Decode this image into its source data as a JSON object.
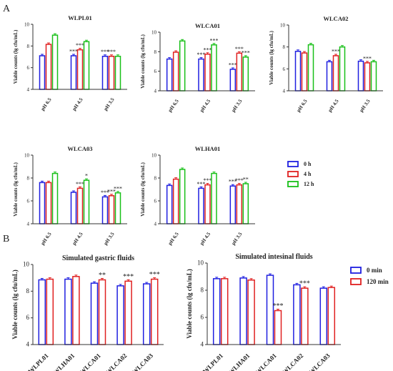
{
  "colors": {
    "blue": "#1f1fe0",
    "red": "#e02020",
    "green": "#18c018",
    "axis": "#333333"
  },
  "panel_a": {
    "letter": "A",
    "ylabel": "Viable counts (lg cfu/mL)",
    "legend": [
      {
        "label": "0 h",
        "color": "#1f1fe0"
      },
      {
        "label": "4 h",
        "color": "#e02020"
      },
      {
        "label": "12 h",
        "color": "#18c018"
      }
    ]
  },
  "panel_b": {
    "letter": "B",
    "ylabel": "Viable counts (lg cfu/mL)",
    "legend": [
      {
        "label": "0 min",
        "color": "#1f1fe0"
      },
      {
        "label": "120 min",
        "color": "#e02020"
      }
    ]
  },
  "chart_data": [
    {
      "type": "bar",
      "title": "WLPL01",
      "categories": [
        "pH 6.5",
        "pH 4.5",
        "pH 3.5"
      ],
      "ylim": [
        4,
        10
      ],
      "yticks": [
        4,
        6,
        8,
        10
      ],
      "series": [
        {
          "name": "0 h",
          "values": [
            7.1,
            7.1,
            7.05
          ]
        },
        {
          "name": "4 h",
          "values": [
            8.15,
            7.65,
            7.05
          ]
        },
        {
          "name": "12 h",
          "values": [
            9.0,
            8.4,
            7.05
          ]
        }
      ],
      "annotations": [
        [
          "",
          "***",
          "***"
        ],
        [
          "",
          "***",
          "***"
        ],
        [
          "",
          "",
          ""
        ]
      ]
    },
    {
      "type": "bar",
      "title": "WLCA01",
      "categories": [
        "pH 6.5",
        "pH 4.5",
        "pH 3.5"
      ],
      "ylim": [
        4,
        10
      ],
      "yticks": [
        4,
        6,
        8,
        10
      ],
      "series": [
        {
          "name": "0 h",
          "values": [
            7.25,
            7.25,
            6.2
          ]
        },
        {
          "name": "4 h",
          "values": [
            7.95,
            7.75,
            7.85
          ]
        },
        {
          "name": "12 h",
          "values": [
            9.1,
            8.7,
            7.45
          ]
        }
      ],
      "annotations": [
        [
          "",
          "***",
          "***"
        ],
        [
          "",
          "***",
          "***"
        ],
        [
          "",
          "***",
          "***"
        ]
      ]
    },
    {
      "type": "bar",
      "title": "WLCA02",
      "categories": [
        "pH 6.5",
        "pH 4.5",
        "pH 3.5"
      ],
      "ylim": [
        4,
        10
      ],
      "yticks": [
        4,
        6,
        8,
        10
      ],
      "series": [
        {
          "name": "0 h",
          "values": [
            7.6,
            6.65,
            6.7
          ]
        },
        {
          "name": "4 h",
          "values": [
            7.45,
            7.2,
            6.55
          ]
        },
        {
          "name": "12 h",
          "values": [
            8.2,
            8.0,
            6.65
          ]
        }
      ],
      "annotations": [
        [
          "",
          "",
          ""
        ],
        [
          "",
          "***",
          "***"
        ],
        [
          "",
          "",
          ""
        ]
      ]
    },
    {
      "type": "bar",
      "title": "WLCA03",
      "categories": [
        "pH 6.5",
        "pH 4.5",
        "pH 3.5"
      ],
      "ylim": [
        4,
        10
      ],
      "yticks": [
        4,
        6,
        8,
        10
      ],
      "series": [
        {
          "name": "0 h",
          "values": [
            7.6,
            6.75,
            6.35
          ]
        },
        {
          "name": "4 h",
          "values": [
            7.6,
            7.1,
            6.45
          ]
        },
        {
          "name": "12 h",
          "values": [
            8.4,
            7.8,
            6.7
          ]
        }
      ],
      "annotations": [
        [
          "",
          "",
          "***"
        ],
        [
          "",
          "***",
          "***"
        ],
        [
          "",
          "*",
          "***"
        ]
      ]
    },
    {
      "type": "bar",
      "title": "WLHA01",
      "categories": [
        "pH 6.5",
        "pH 4.5",
        "pH 3.5"
      ],
      "ylim": [
        4,
        10
      ],
      "yticks": [
        4,
        6,
        8,
        10
      ],
      "series": [
        {
          "name": "0 h",
          "values": [
            7.35,
            7.1,
            7.3
          ]
        },
        {
          "name": "4 h",
          "values": [
            7.9,
            7.4,
            7.4
          ]
        },
        {
          "name": "12 h",
          "values": [
            8.75,
            8.4,
            7.5
          ]
        }
      ],
      "annotations": [
        [
          "",
          "***",
          "***"
        ],
        [
          "",
          "***",
          "***"
        ],
        [
          "",
          "",
          "**"
        ]
      ]
    },
    {
      "type": "bar",
      "title": "Simulated gastric fluids",
      "categories": [
        "WLPL01",
        "WLHA01",
        "WLCA01",
        "WLCA02",
        "WLCA03"
      ],
      "ylim": [
        4,
        10
      ],
      "yticks": [
        4,
        6,
        8,
        10
      ],
      "series": [
        {
          "name": "0 min",
          "values": [
            8.85,
            8.9,
            8.6,
            8.4,
            8.55
          ]
        },
        {
          "name": "120 min",
          "values": [
            8.9,
            9.1,
            8.85,
            8.75,
            8.9
          ]
        }
      ],
      "annotations": [
        [
          "",
          "",
          "",
          "",
          ""
        ],
        [
          "",
          "",
          "**",
          "***",
          "***"
        ]
      ]
    },
    {
      "type": "bar",
      "title": "Simulated intesinal fluids",
      "categories": [
        "WLPL01",
        "WLHA01",
        "WLCA01",
        "WLCA02",
        "WLCA03"
      ],
      "ylim": [
        4,
        10
      ],
      "yticks": [
        4,
        6,
        8,
        10
      ],
      "series": [
        {
          "name": "0 min",
          "values": [
            8.85,
            8.9,
            9.1,
            8.4,
            8.15
          ]
        },
        {
          "name": "120 min",
          "values": [
            8.85,
            8.75,
            6.5,
            8.15,
            8.2
          ]
        }
      ],
      "annotations": [
        [
          "",
          "",
          "",
          "",
          ""
        ],
        [
          "",
          "",
          "***",
          "***",
          ""
        ]
      ]
    }
  ]
}
